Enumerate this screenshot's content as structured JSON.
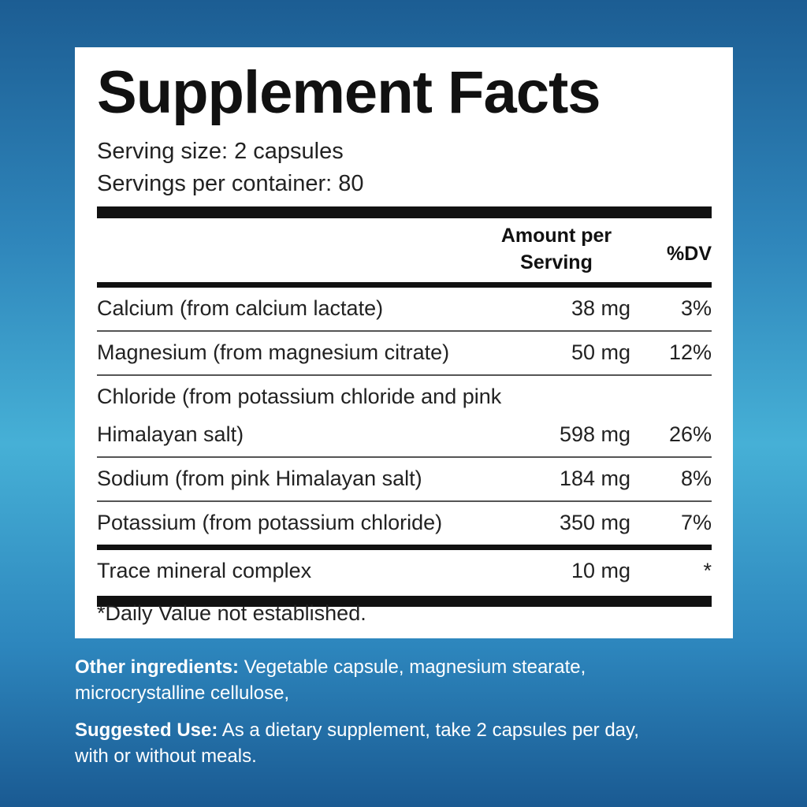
{
  "title": "Supplement Facts",
  "serving_size": "Serving size: 2 capsules",
  "servings_per_container": "Servings per container: 80",
  "table": {
    "headers": [
      "Amount per Serving",
      "%DV"
    ],
    "rows": [
      [
        "Calcium (from calcium lactate)",
        "38 mg",
        "3%"
      ],
      [
        "Magnesium (from magnesium citrate)",
        "50 mg",
        "12%"
      ],
      [
        "Chloride (from potassium chloride and pink Himalayan salt)",
        "598 mg",
        "26%"
      ],
      [
        "Sodium (from pink Himalayan salt)",
        "184 mg",
        "8%"
      ],
      [
        "Potassium (from potassium chloride)",
        "350 mg",
        "7%"
      ],
      [
        "Trace mineral complex",
        "10 mg",
        "*"
      ]
    ]
  },
  "footnote": "*Daily Value not established.",
  "other_ingredients": {
    "label": "Other ingredients:",
    "text": "Vegetable capsule, magnesium stearate, microcrystalline cellulose,"
  },
  "suggested_use": {
    "label": "Suggested Use:",
    "text": "As a dietary supplement, take 2 capsules per day, with or without meals."
  }
}
